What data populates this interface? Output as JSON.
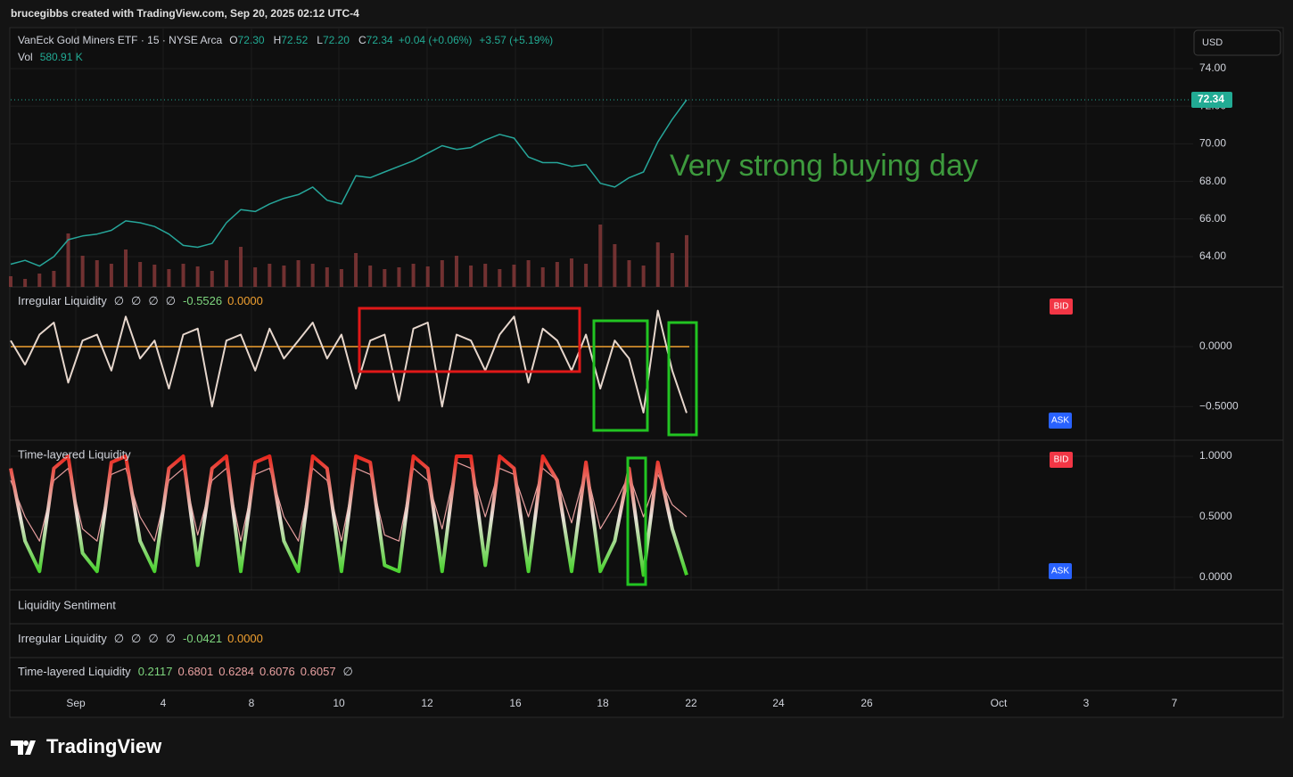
{
  "header": {
    "credit": "brucegibbs created with TradingView.com, Sep 20, 2025 02:12 UTC-4"
  },
  "currency": "USD",
  "legend": {
    "symbol": "VanEck Gold Miners ETF · 15 · NYSE Arca",
    "o_label": "O",
    "o": "72.30",
    "h_label": "H",
    "h": "72.52",
    "l_label": "L",
    "l": "72.20",
    "c_label": "C",
    "c": "72.34",
    "change": "+0.04 (+0.06%)",
    "change2": "+3.57 (+5.19%)",
    "vol_label": "Vol",
    "vol": "580.91 K"
  },
  "last_price_label": "72.34",
  "annotation": "Very strong buying day",
  "chart_data": [
    {
      "type": "line",
      "color": "#26a69a",
      "volume_color": "#8a3a3a",
      "values": [
        63.6,
        63.8,
        63.5,
        64.0,
        64.9,
        65.1,
        65.2,
        65.4,
        65.9,
        65.8,
        65.6,
        65.2,
        64.6,
        64.5,
        64.7,
        65.8,
        66.5,
        66.4,
        66.8,
        67.1,
        67.3,
        67.7,
        67.0,
        66.8,
        68.3,
        68.2,
        68.5,
        68.8,
        69.1,
        69.5,
        69.9,
        69.7,
        69.8,
        70.2,
        70.5,
        70.3,
        69.3,
        69.0,
        69.0,
        68.8,
        68.9,
        67.9,
        67.7,
        68.2,
        68.5,
        70.1,
        71.3,
        72.34
      ],
      "volume": [
        120,
        90,
        150,
        180,
        600,
        350,
        300,
        260,
        420,
        280,
        250,
        200,
        260,
        230,
        180,
        300,
        450,
        220,
        260,
        240,
        300,
        260,
        220,
        200,
        380,
        240,
        200,
        220,
        260,
        230,
        300,
        350,
        240,
        260,
        200,
        250,
        300,
        220,
        280,
        320,
        260,
        700,
        480,
        300,
        240,
        500,
        380,
        580.91
      ],
      "ylim": [
        62.39,
        76.13
      ],
      "yticks": [
        {
          "value": 64,
          "label": "64.00"
        },
        {
          "value": 66,
          "label": "66.00"
        },
        {
          "value": 68,
          "label": "68.00"
        },
        {
          "value": 70,
          "label": "70.00"
        },
        {
          "value": 72,
          "label": "72.00"
        },
        {
          "value": 74,
          "label": "74.00"
        }
      ],
      "grid": true
    },
    {
      "type": "line",
      "title": "Irregular Liquidity",
      "legend_values": [
        "∅",
        "∅",
        "∅",
        "∅",
        "-0.5526",
        "0.0000"
      ],
      "badges": [
        "BID",
        "ASK"
      ],
      "color": "#e6d6cc",
      "zero_color": "#f0a030",
      "values": [
        0.05,
        -0.15,
        0.1,
        0.2,
        -0.3,
        0.05,
        0.1,
        -0.2,
        0.25,
        -0.1,
        0.05,
        -0.35,
        0.1,
        0.15,
        -0.5,
        0.05,
        0.1,
        -0.2,
        0.15,
        -0.1,
        0.05,
        0.2,
        -0.1,
        0.1,
        -0.35,
        0.05,
        0.1,
        -0.45,
        0.15,
        0.2,
        -0.5,
        0.1,
        0.05,
        -0.2,
        0.1,
        0.25,
        -0.3,
        0.15,
        0.05,
        -0.2,
        0.1,
        -0.35,
        0.05,
        -0.1,
        -0.55,
        0.3,
        -0.2,
        -0.5526
      ],
      "ylim": [
        -0.78,
        0.49
      ],
      "yticks": [
        {
          "value": 0,
          "label": "0.0000"
        },
        {
          "value": -0.5,
          "label": "−0.5000"
        }
      ],
      "grid": true
    },
    {
      "type": "line",
      "title": "Time-layered Liquidity",
      "badges": [
        "BID",
        "ASK"
      ],
      "gradient": [
        "#3ad01e",
        "#e8e0d8",
        "#e8281e"
      ],
      "series": [
        {
          "color": "#e8a0a0",
          "values": [
            0.8,
            0.5,
            0.3,
            0.8,
            0.9,
            0.4,
            0.3,
            0.85,
            0.9,
            0.5,
            0.3,
            0.8,
            0.9,
            0.35,
            0.8,
            0.9,
            0.3,
            0.85,
            0.9,
            0.5,
            0.3,
            0.9,
            0.8,
            0.3,
            0.9,
            0.85,
            0.35,
            0.3,
            0.9,
            0.8,
            0.4,
            0.95,
            0.9,
            0.5,
            0.9,
            0.85,
            0.5,
            0.9,
            0.8,
            0.45,
            0.9,
            0.4,
            0.6,
            0.85,
            0.5,
            0.85,
            0.6,
            0.5
          ]
        },
        {
          "color": "gradient",
          "values": [
            0.9,
            0.3,
            0.05,
            0.9,
            1,
            0.2,
            0.05,
            0.95,
            1,
            0.3,
            0.05,
            0.9,
            1,
            0.1,
            0.9,
            1,
            0.05,
            0.95,
            1,
            0.3,
            0.05,
            1,
            0.9,
            0.05,
            1,
            0.95,
            0.1,
            0.05,
            1,
            0.9,
            0.05,
            1,
            1,
            0.1,
            1,
            0.9,
            0.05,
            1,
            0.8,
            0.05,
            0.95,
            0.05,
            0.3,
            0.9,
            0.02,
            0.95,
            0.4,
            0.02
          ]
        }
      ],
      "ylim": [
        -0.103,
        1.125
      ],
      "yticks": [
        {
          "value": 0,
          "label": "0.0000"
        },
        {
          "value": 0.5,
          "label": "0.5000"
        },
        {
          "value": 1,
          "label": "1.0000"
        }
      ],
      "grid": true
    }
  ],
  "sentiment": {
    "title": "Liquidity Sentiment",
    "rows": [
      {
        "name": "Irregular Liquidity",
        "values": [
          "∅",
          "∅",
          "∅",
          "∅",
          "-0.0421",
          "0.0000"
        ]
      },
      {
        "name": "Time-layered Liquidity",
        "values": [
          "0.2117",
          "0.6801",
          "0.6284",
          "0.6076",
          "0.6057",
          "∅"
        ]
      }
    ]
  },
  "time_axis": [
    "Sep",
    "4",
    "8",
    "10",
    "12",
    "16",
    "18",
    "22",
    "24",
    "26",
    "Oct",
    "3",
    "7"
  ],
  "brand": "TradingView"
}
